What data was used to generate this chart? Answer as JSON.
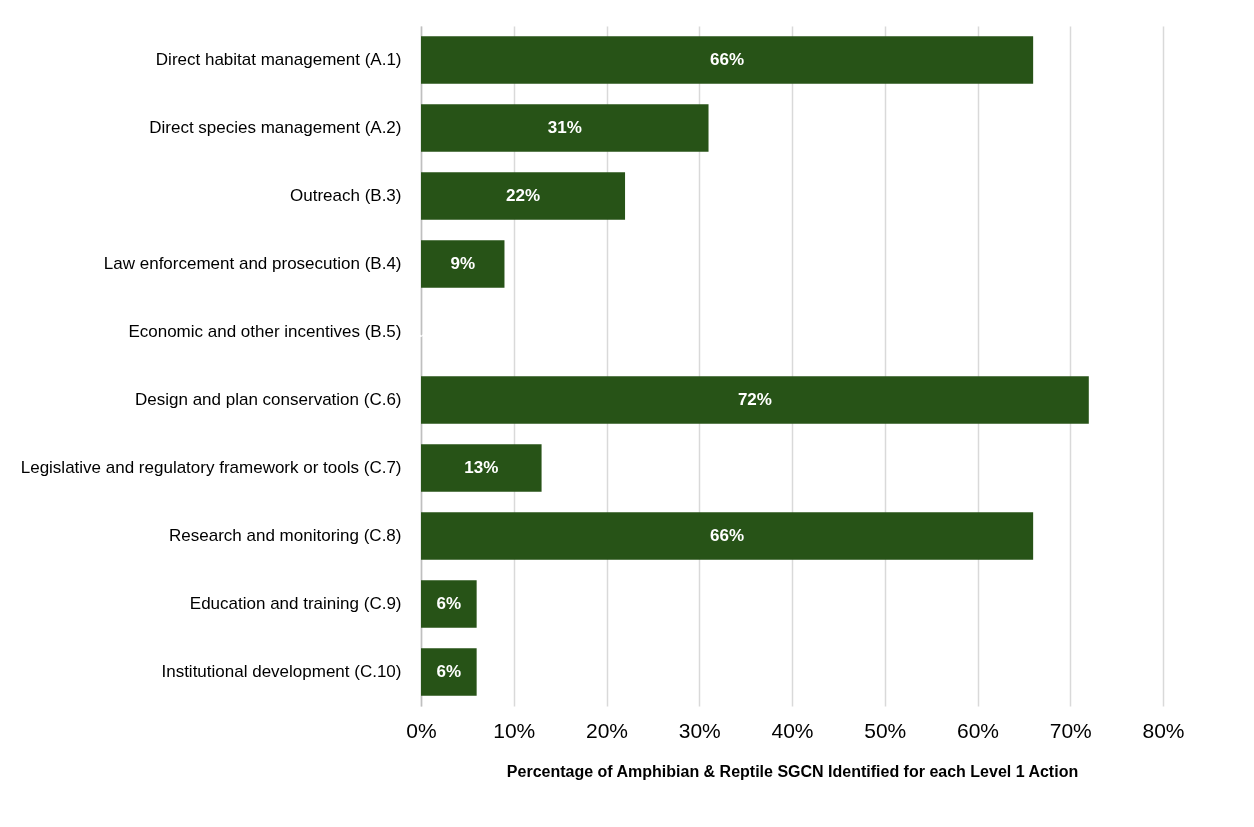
{
  "chart_data": {
    "type": "bar",
    "orientation": "horizontal",
    "xlabel": "Percentage of Amphibian & Reptile SGCN Identified for each Level 1 Action",
    "categories": [
      "Direct habitat management (A.1)",
      "Direct species management (A.2)",
      "Outreach (B.3)",
      "Law enforcement and prosecution (B.4)",
      "Economic and other incentives (B.5)",
      "Design and plan conservation (C.6)",
      "Legislative and regulatory framework or tools (C.7)",
      "Research and monitoring (C.8)",
      "Education and training (C.9)",
      "Institutional development (C.10)"
    ],
    "values": [
      66,
      31,
      22,
      9,
      0,
      72,
      13,
      66,
      6,
      6
    ],
    "value_labels": [
      "66%",
      "31%",
      "22%",
      "9%",
      null,
      "72%",
      "13%",
      "66%",
      "6%",
      "6%"
    ],
    "color": "#275317",
    "xlim": [
      0,
      80
    ],
    "xticks": [
      {
        "value": 0,
        "label": "0%"
      },
      {
        "value": 10,
        "label": "10%"
      },
      {
        "value": 20,
        "label": "20%"
      },
      {
        "value": 30,
        "label": "30%"
      },
      {
        "value": 40,
        "label": "40%"
      },
      {
        "value": 50,
        "label": "50%"
      },
      {
        "value": 60,
        "label": "60%"
      },
      {
        "value": 70,
        "label": "70%"
      },
      {
        "value": 80,
        "label": "80%"
      }
    ],
    "grid": "x"
  }
}
